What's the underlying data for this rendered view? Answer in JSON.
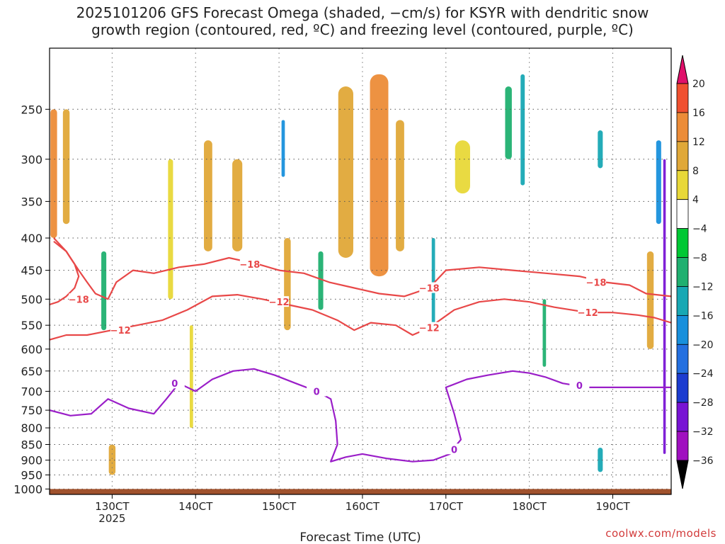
{
  "chart_data": {
    "type": "heatmap",
    "title": "2025101206 GFS Forecast Omega (shaded, −cm/s) for KSYR with dendritic snow",
    "subtitle": "growth region (contoured, red, ºC) and freezing level (contoured, purple, ºC)",
    "xlabel": "Forecast Time (UTC)",
    "x_ticks": [
      "130CT",
      "140CT",
      "150CT",
      "160CT",
      "170CT",
      "180CT",
      "190CT"
    ],
    "x_tick_day": [
      13,
      14,
      15,
      16,
      17,
      18,
      19
    ],
    "x_year": "2025",
    "xlim_day": [
      12.25,
      19.7
    ],
    "y_ticks": [
      250,
      300,
      350,
      400,
      450,
      500,
      550,
      600,
      650,
      700,
      750,
      800,
      850,
      900,
      950,
      1000
    ],
    "ylim": [
      200,
      1020
    ],
    "yscale": "log",
    "grid": true,
    "ground_level_hPa": 1000,
    "colorbar": {
      "labels": [
        "20",
        "16",
        "12",
        "8",
        "4",
        "−4",
        "−8",
        "−12",
        "−16",
        "−20",
        "−24",
        "−28",
        "−32",
        "−36"
      ],
      "colors": [
        "#e8e032",
        "#e8c838",
        "#e0a838",
        "#ec8c38",
        "#f05030",
        "#00c834",
        "#20b070",
        "#18a8b4",
        "#1890dc",
        "#2470e0",
        "#1c3cd0",
        "#7814d4",
        "#a010c0",
        "#aaaaaa",
        "#000000"
      ],
      "top_color": "#e0106a"
    },
    "omega_blobs": [
      {
        "day": 12.3,
        "top": 250,
        "bot": 400,
        "width": 0.08,
        "value": 14
      },
      {
        "day": 12.45,
        "top": 250,
        "bot": 380,
        "width": 0.08,
        "value": 8
      },
      {
        "day": 12.9,
        "top": 420,
        "bot": 560,
        "width": 0.06,
        "value": -8
      },
      {
        "day": 13.0,
        "top": 850,
        "bot": 950,
        "width": 0.08,
        "value": 8
      },
      {
        "day": 13.7,
        "top": 300,
        "bot": 500,
        "width": 0.06,
        "value": 6
      },
      {
        "day": 13.95,
        "top": 550,
        "bot": 800,
        "width": 0.04,
        "value": 6
      },
      {
        "day": 14.15,
        "top": 280,
        "bot": 420,
        "width": 0.1,
        "value": 8
      },
      {
        "day": 14.5,
        "top": 300,
        "bot": 420,
        "width": 0.12,
        "value": 10
      },
      {
        "day": 15.05,
        "top": 260,
        "bot": 320,
        "width": 0.04,
        "value": -16
      },
      {
        "day": 15.1,
        "top": 400,
        "bot": 560,
        "width": 0.08,
        "value": 8
      },
      {
        "day": 15.5,
        "top": 420,
        "bot": 520,
        "width": 0.06,
        "value": -8
      },
      {
        "day": 15.8,
        "top": 230,
        "bot": 430,
        "width": 0.18,
        "value": 10
      },
      {
        "day": 16.2,
        "top": 220,
        "bot": 460,
        "width": 0.22,
        "value": 12
      },
      {
        "day": 16.45,
        "top": 260,
        "bot": 420,
        "width": 0.1,
        "value": 9
      },
      {
        "day": 16.85,
        "top": 400,
        "bot": 560,
        "width": 0.04,
        "value": -12
      },
      {
        "day": 17.2,
        "top": 280,
        "bot": 340,
        "width": 0.18,
        "value": 6
      },
      {
        "day": 17.75,
        "top": 230,
        "bot": 300,
        "width": 0.08,
        "value": -8
      },
      {
        "day": 17.92,
        "top": 220,
        "bot": 330,
        "width": 0.05,
        "value": -12
      },
      {
        "day": 18.18,
        "top": 500,
        "bot": 640,
        "width": 0.04,
        "value": -8
      },
      {
        "day": 18.85,
        "top": 270,
        "bot": 310,
        "width": 0.06,
        "value": -12
      },
      {
        "day": 18.85,
        "top": 860,
        "bot": 940,
        "width": 0.06,
        "value": -12
      },
      {
        "day": 19.45,
        "top": 420,
        "bot": 600,
        "width": 0.08,
        "value": 10
      },
      {
        "day": 19.55,
        "top": 280,
        "bot": 380,
        "width": 0.06,
        "value": -16
      },
      {
        "day": 19.62,
        "top": 300,
        "bot": 880,
        "width": 0.03,
        "value": -28
      }
    ],
    "contours": [
      {
        "level": -18,
        "color": "#e84848",
        "points": [
          [
            12.3,
            400
          ],
          [
            12.45,
            420
          ],
          [
            12.5,
            430
          ],
          [
            12.6,
            450
          ],
          [
            12.7,
            470
          ],
          [
            12.8,
            490
          ],
          [
            12.95,
            500
          ],
          [
            13.05,
            470
          ],
          [
            13.25,
            450
          ],
          [
            13.5,
            455
          ],
          [
            13.8,
            445
          ],
          [
            14.1,
            440
          ],
          [
            14.4,
            430
          ],
          [
            14.75,
            440
          ],
          [
            15.0,
            450
          ],
          [
            15.3,
            455
          ],
          [
            15.6,
            470
          ],
          [
            15.9,
            480
          ],
          [
            16.2,
            490
          ],
          [
            16.5,
            495
          ],
          [
            16.8,
            480
          ],
          [
            17.0,
            450
          ],
          [
            17.4,
            445
          ],
          [
            17.8,
            450
          ],
          [
            18.2,
            455
          ],
          [
            18.6,
            460
          ],
          [
            18.9,
            470
          ],
          [
            19.2,
            475
          ],
          [
            19.4,
            490
          ],
          [
            19.7,
            495
          ]
        ],
        "labels": [
          [
            14.65,
            440
          ],
          [
            16.8,
            480
          ],
          [
            18.8,
            470
          ]
        ]
      },
      {
        "level": -18,
        "color": "#e84848",
        "points": [
          [
            12.25,
            510
          ],
          [
            12.35,
            505
          ],
          [
            12.45,
            495
          ],
          [
            12.55,
            480
          ],
          [
            12.6,
            460
          ],
          [
            12.55,
            440
          ],
          [
            12.5,
            430
          ],
          [
            12.45,
            420
          ],
          [
            12.3,
            405
          ]
        ],
        "labels": [
          [
            12.6,
            500
          ]
        ]
      },
      {
        "level": -12,
        "color": "#e84848",
        "points": [
          [
            12.25,
            580
          ],
          [
            12.45,
            570
          ],
          [
            12.7,
            570
          ],
          [
            13.0,
            560
          ],
          [
            13.3,
            550
          ],
          [
            13.6,
            540
          ],
          [
            13.9,
            520
          ],
          [
            14.2,
            495
          ],
          [
            14.5,
            492
          ],
          [
            14.8,
            500
          ],
          [
            15.1,
            510
          ],
          [
            15.4,
            520
          ],
          [
            15.7,
            540
          ],
          [
            15.9,
            560
          ],
          [
            16.1,
            545
          ],
          [
            16.4,
            550
          ],
          [
            16.6,
            570
          ],
          [
            16.8,
            555
          ],
          [
            17.1,
            520
          ],
          [
            17.4,
            505
          ],
          [
            17.7,
            500
          ],
          [
            18.0,
            505
          ],
          [
            18.3,
            515
          ],
          [
            18.7,
            525
          ],
          [
            19.0,
            525
          ],
          [
            19.3,
            530
          ],
          [
            19.5,
            535
          ],
          [
            19.7,
            545
          ]
        ],
        "labels": [
          [
            13.1,
            560
          ],
          [
            15.0,
            505
          ],
          [
            16.8,
            555
          ],
          [
            18.7,
            525
          ]
        ]
      },
      {
        "level": 0,
        "color": "#9a1ec8",
        "points": [
          [
            12.25,
            750
          ],
          [
            12.5,
            765
          ],
          [
            12.75,
            760
          ],
          [
            12.95,
            720
          ],
          [
            13.2,
            745
          ],
          [
            13.5,
            760
          ],
          [
            13.65,
            720
          ],
          [
            13.8,
            680
          ],
          [
            14.0,
            700
          ],
          [
            14.2,
            670
          ],
          [
            14.45,
            650
          ],
          [
            14.7,
            645
          ],
          [
            14.95,
            660
          ],
          [
            15.2,
            680
          ],
          [
            15.45,
            700
          ],
          [
            15.62,
            720
          ],
          [
            15.68,
            780
          ],
          [
            15.7,
            850
          ],
          [
            15.62,
            905
          ],
          [
            15.8,
            890
          ],
          [
            16.0,
            880
          ],
          [
            16.3,
            895
          ],
          [
            16.6,
            905
          ],
          [
            16.85,
            900
          ],
          [
            17.05,
            880
          ],
          [
            17.1,
            860
          ],
          [
            17.18,
            835
          ],
          [
            17.1,
            760
          ],
          [
            17.0,
            690
          ],
          [
            17.25,
            670
          ],
          [
            17.5,
            660
          ],
          [
            17.8,
            650
          ],
          [
            18.0,
            655
          ],
          [
            18.2,
            665
          ],
          [
            18.4,
            680
          ],
          [
            18.7,
            690
          ],
          [
            19.0,
            690
          ],
          [
            19.3,
            690
          ],
          [
            19.7,
            690
          ]
        ],
        "labels": [
          [
            13.75,
            680
          ],
          [
            15.45,
            700
          ],
          [
            17.1,
            865
          ],
          [
            18.6,
            685
          ]
        ]
      }
    ]
  },
  "credit": "coolwx.com/models"
}
